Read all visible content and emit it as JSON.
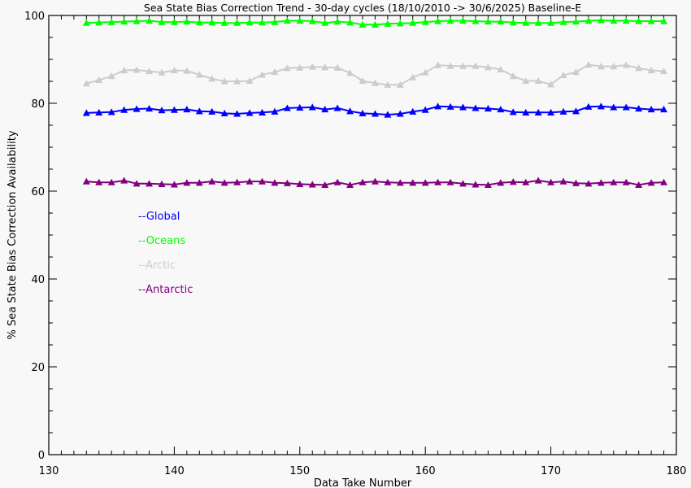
{
  "chart_data": {
    "type": "line",
    "title": "Sea State Bias Correction Trend - 30-day cycles (18/10/2010 -> 30/6/2025) Baseline-E",
    "xlabel": "Data Take Number",
    "ylabel": "% Sea State Bias Correction Availability",
    "xlim": [
      130,
      180
    ],
    "ylim": [
      0,
      100
    ],
    "xticks": [
      130,
      140,
      150,
      160,
      170,
      180
    ],
    "yticks": [
      0,
      20,
      40,
      60,
      80,
      100
    ],
    "x": [
      133,
      134,
      135,
      136,
      137,
      138,
      139,
      140,
      141,
      142,
      143,
      144,
      145,
      146,
      147,
      148,
      149,
      150,
      151,
      152,
      153,
      154,
      155,
      156,
      157,
      158,
      159,
      160,
      161,
      162,
      163,
      164,
      165,
      166,
      167,
      168,
      169,
      170,
      171,
      172,
      173,
      174,
      175,
      176,
      177,
      178,
      179
    ],
    "series": [
      {
        "name": "Global",
        "color": "#0000ff",
        "legend_label": "--Global",
        "values": [
          77.8,
          77.9,
          78.0,
          78.5,
          78.7,
          78.8,
          78.4,
          78.5,
          78.6,
          78.2,
          78.1,
          77.7,
          77.6,
          77.8,
          77.9,
          78.1,
          78.9,
          79.0,
          79.1,
          78.6,
          78.9,
          78.2,
          77.7,
          77.6,
          77.4,
          77.6,
          78.1,
          78.5,
          79.3,
          79.2,
          79.1,
          78.9,
          78.8,
          78.6,
          78.0,
          77.9,
          77.9,
          77.9,
          78.1,
          78.2,
          79.2,
          79.3,
          79.1,
          79.1,
          78.8,
          78.6,
          78.6
        ]
      },
      {
        "name": "Oceans",
        "color": "#00ff00",
        "legend_label": "--Oceans",
        "values": [
          98.3,
          98.4,
          98.5,
          98.6,
          98.7,
          98.8,
          98.5,
          98.5,
          98.6,
          98.4,
          98.4,
          98.3,
          98.3,
          98.4,
          98.4,
          98.5,
          98.8,
          98.8,
          98.7,
          98.3,
          98.6,
          98.4,
          97.9,
          97.9,
          98.1,
          98.2,
          98.3,
          98.5,
          98.7,
          98.8,
          98.8,
          98.7,
          98.6,
          98.6,
          98.4,
          98.3,
          98.3,
          98.3,
          98.5,
          98.6,
          98.8,
          98.9,
          98.8,
          98.8,
          98.7,
          98.7,
          98.7
        ]
      },
      {
        "name": "Arctic",
        "color": "#cccccc",
        "legend_label": "--Arctic",
        "values": [
          84.5,
          85.3,
          86.2,
          87.5,
          87.6,
          87.3,
          87.0,
          87.5,
          87.4,
          86.5,
          85.6,
          85.0,
          85.0,
          85.1,
          86.5,
          87.1,
          88.0,
          88.1,
          88.3,
          88.2,
          88.1,
          86.9,
          85.1,
          84.6,
          84.2,
          84.2,
          85.9,
          87.0,
          88.7,
          88.5,
          88.5,
          88.5,
          88.2,
          87.7,
          86.2,
          85.1,
          85.1,
          84.3,
          86.4,
          87.1,
          88.8,
          88.4,
          88.4,
          88.7,
          88.0,
          87.5,
          87.3
        ]
      },
      {
        "name": "Antarctic",
        "color": "#800080",
        "legend_label": "--Antarctic",
        "values": [
          62.2,
          62.0,
          62.0,
          62.4,
          61.7,
          61.7,
          61.6,
          61.5,
          61.9,
          61.9,
          62.2,
          61.9,
          62.0,
          62.2,
          62.2,
          61.9,
          61.8,
          61.6,
          61.5,
          61.4,
          62.0,
          61.4,
          62.0,
          62.2,
          62.0,
          61.9,
          61.9,
          61.9,
          62.0,
          62.0,
          61.7,
          61.5,
          61.4,
          61.9,
          62.1,
          62.0,
          62.4,
          62.0,
          62.2,
          61.8,
          61.7,
          61.9,
          62.0,
          62.0,
          61.4,
          61.9,
          62.0
        ]
      }
    ],
    "legend_position": "upper-left inside plot",
    "grid": false,
    "marker": "triangle"
  }
}
